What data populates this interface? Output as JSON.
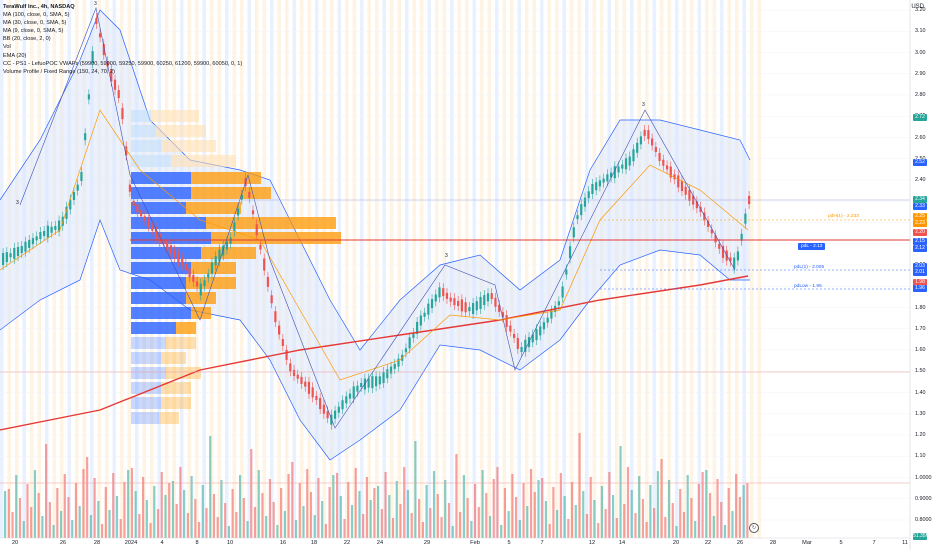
{
  "legend": {
    "title": "TeraWulf Inc., 4h, NASDAQ",
    "indicators": [
      "MA (100, close, 0, SMA, 5)",
      "MA (30, close, 0, SMA, 5)",
      "MA (9, close, 0, SMA, 5)",
      "BB (20, close, 2, 0)",
      "Vol",
      "EMA (20)",
      "CC - PS1 - LefuoPOC VWAPs (59900, 59900, 59250, 59900, 60250, 61200, 59900, 60050, 0, 1)",
      "Volume Profile / Fixed Range (150, 24, 70, 2)"
    ]
  },
  "currency": "USD",
  "price_axis": {
    "ticks": [
      "3.20",
      "3.10",
      "3.00",
      "2.90",
      "2.80",
      "2.70",
      "2.60",
      "2.50",
      "2.40",
      "2.30",
      "2.20",
      "2.10",
      "2.00",
      "1.90",
      "1.80",
      "1.70",
      "1.60",
      "1.50",
      "1.40",
      "1.30",
      "1.20",
      "1.10",
      "1.0000",
      "0.9000",
      "0.8000"
    ]
  },
  "price_tags": [
    {
      "text": "2.72",
      "color": "#26a69a"
    },
    {
      "text": "2.52",
      "color": "#2962ff"
    },
    {
      "text": "2.34",
      "color": "#26a69a"
    },
    {
      "text": "2.33",
      "color": "#2962ff"
    },
    {
      "text": "2.25",
      "color": "#ff9800"
    },
    {
      "text": "2.23",
      "color": "#ff9800"
    },
    {
      "text": "2.20",
      "color": "#ef5350"
    },
    {
      "text": "2.15",
      "color": "#2962ff"
    },
    {
      "text": "2.12",
      "color": "#2962ff"
    },
    {
      "text": "2.03",
      "color": "#2962ff"
    },
    {
      "text": "2.01",
      "color": "#2962ff"
    },
    {
      "text": "1.98",
      "color": "#ef5350"
    },
    {
      "text": "1.96",
      "color": "#2962ff"
    },
    {
      "text": "51.35M",
      "color": "#26a69a"
    }
  ],
  "time_axis": {
    "labels": [
      "20",
      "26",
      "28",
      "2024",
      "4",
      "8",
      "10",
      "16",
      "18",
      "22",
      "24",
      "29",
      "Feb",
      "5",
      "7",
      "12",
      "14",
      "20",
      "22",
      "26",
      "28",
      "Mar",
      "5",
      "7",
      "11"
    ]
  },
  "annotations": {
    "hline_labels": [
      "pdH(1) - 2.233",
      "pdL(1) - 2.005",
      "pdLow - 1.95"
    ],
    "callout": "pdL - 2.13",
    "peak_marks": [
      "3",
      "3",
      "3",
      "3"
    ]
  },
  "colors": {
    "up": "#26a69a",
    "down": "#ef5350",
    "ma100": "#e53935",
    "ema": "#ff9800",
    "bb": "#2962ff",
    "vp_up": "#2962ff",
    "vp_down": "#ff9800"
  }
}
